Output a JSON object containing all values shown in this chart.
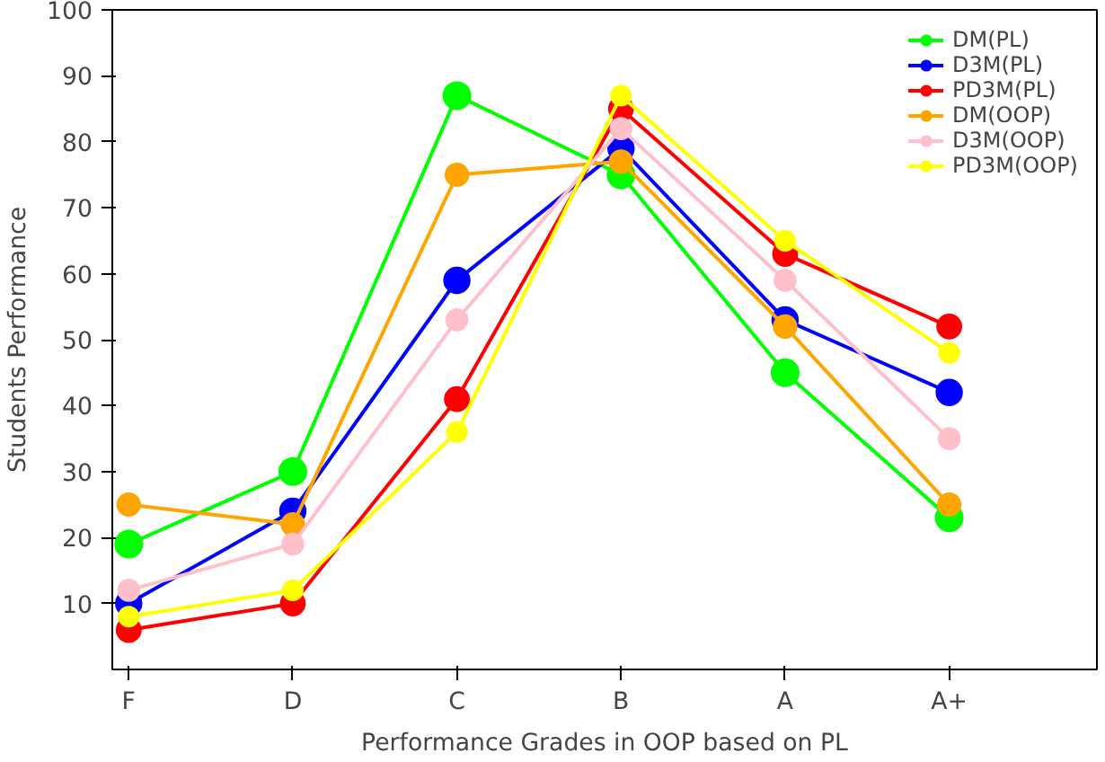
{
  "chart_data": {
    "type": "line",
    "xlabel": "Performance Grades in OOP based on PL",
    "ylabel": "Students Performance",
    "categories": [
      "F",
      "D",
      "C",
      "B",
      "A",
      "A+"
    ],
    "ylim": [
      0,
      100
    ],
    "yticks": [
      10,
      20,
      30,
      40,
      50,
      60,
      70,
      80,
      90,
      100
    ],
    "grid": false,
    "legend": "top right",
    "marker": "circle",
    "line_style": "solid",
    "series": [
      {
        "name": "DM(PL)",
        "color": "#00ff00",
        "values": [
          19,
          30,
          87,
          75,
          45,
          23
        ]
      },
      {
        "name": "D3M(PL)",
        "color": "#0000ff",
        "values": [
          10,
          24,
          59,
          79,
          53,
          42
        ]
      },
      {
        "name": "PD3M(PL)",
        "color": "#ff0000",
        "values": [
          6,
          10,
          41,
          85,
          63,
          52
        ]
      },
      {
        "name": "DM(OOP)",
        "color": "#ffa500",
        "values": [
          25,
          22,
          75,
          77,
          52,
          25
        ]
      },
      {
        "name": "D3M(OOP)",
        "color": "#ffc0cb",
        "values": [
          12,
          19,
          53,
          82,
          59,
          35
        ]
      },
      {
        "name": "PD3M(OOP)",
        "color": "#ffff00",
        "values": [
          8,
          12,
          36,
          87,
          65,
          48
        ]
      }
    ]
  }
}
